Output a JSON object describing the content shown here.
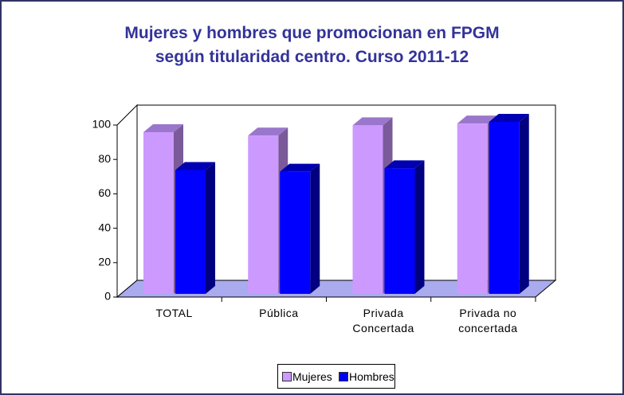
{
  "chart_data": {
    "type": "bar3d",
    "title": [
      "Mujeres y hombres que promocionan en FPGM",
      "según titularidad centro. Curso 2011-12"
    ],
    "categories": [
      "TOTAL",
      "Pública",
      "Privada Concertada",
      "Privada no concertada"
    ],
    "series": [
      {
        "name": "Mujeres",
        "color": "#cc99ff",
        "side": "#7a5a99",
        "top": "#9a77cc",
        "values": [
          94,
          92,
          98,
          99
        ]
      },
      {
        "name": "Hombres",
        "color": "#0000ff",
        "side": "#000080",
        "top": "#0000b0",
        "values": [
          72,
          71,
          73,
          100
        ]
      }
    ],
    "ylim": [
      0,
      100
    ],
    "yticks": [
      0,
      20,
      40,
      60,
      80,
      100
    ],
    "legend": "bottom"
  }
}
